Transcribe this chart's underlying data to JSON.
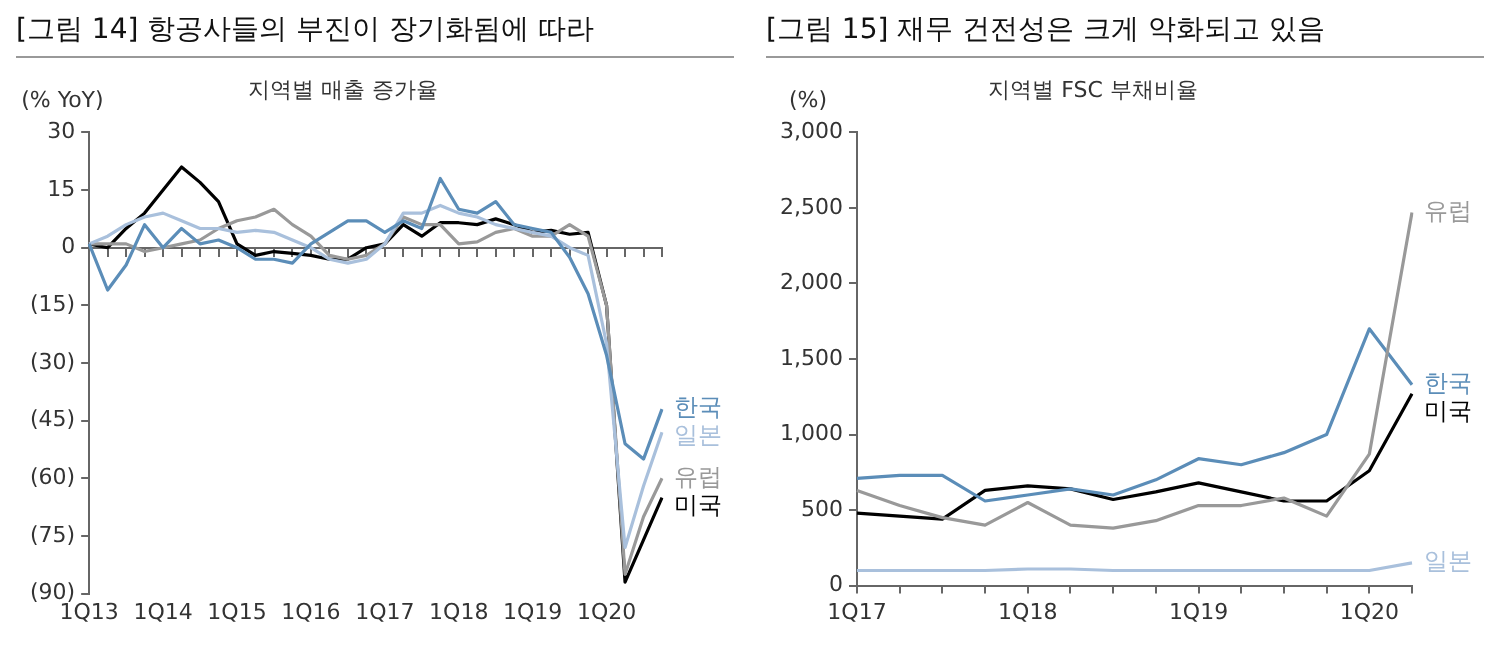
{
  "chart_data": [
    {
      "type": "line",
      "title": "[그림 14] 항공사들의 부진이 장기화됨에 따라",
      "subtitle": "지역별 매출 증가율",
      "ylabel": "(% YoY)",
      "categories": [
        "1Q13",
        null,
        null,
        null,
        "1Q14",
        null,
        null,
        null,
        "1Q15",
        null,
        null,
        null,
        "1Q16",
        null,
        null,
        null,
        "1Q17",
        null,
        null,
        null,
        "1Q18",
        null,
        null,
        null,
        "1Q19",
        null,
        null,
        null,
        "1Q20",
        null,
        null,
        null
      ],
      "series": [
        {
          "name": "한국",
          "color": "#5b8db8",
          "values": [
            1,
            -11,
            -4.5,
            6,
            0,
            5,
            1,
            2,
            0,
            -3,
            -3,
            -4,
            1,
            4,
            7,
            7,
            4,
            7,
            5,
            18,
            10,
            9,
            12,
            6,
            5,
            4,
            -2.5,
            -12,
            -28,
            -51,
            -55,
            -42
          ]
        },
        {
          "name": "일본",
          "color": "#a9c0dc",
          "values": [
            1,
            3,
            6,
            8,
            9,
            7,
            5,
            5,
            4,
            4.5,
            4,
            2,
            0,
            -3,
            -4,
            -3,
            1,
            9,
            9,
            11,
            9,
            8,
            6,
            5,
            4,
            3,
            0,
            -2,
            -25,
            -78,
            -62,
            -48
          ]
        },
        {
          "name": "유럽",
          "color": "#999999",
          "values": [
            1,
            1,
            1,
            -1,
            0,
            1,
            2,
            5,
            7,
            8,
            10,
            6,
            3,
            -2,
            -3,
            -2,
            1,
            8,
            6,
            6,
            1,
            1.5,
            4,
            5,
            3,
            3,
            6,
            3,
            -15,
            -85,
            -70,
            -60
          ]
        },
        {
          "name": "미국",
          "color": "#000000",
          "values": [
            1,
            0,
            5,
            9,
            15,
            21,
            17,
            12,
            1,
            -2,
            -1,
            -1.5,
            -2,
            -3,
            -3,
            0,
            1,
            6,
            3,
            6.5,
            6.5,
            6,
            7.5,
            6,
            4,
            4.5,
            3.5,
            4,
            -15,
            -87,
            -76,
            -65
          ]
        }
      ],
      "ylim": [
        -90,
        30
      ],
      "yticks": [
        {
          "value": -90,
          "label": "(90)"
        },
        {
          "value": -75,
          "label": "(75)"
        },
        {
          "value": -60,
          "label": "(60)"
        },
        {
          "value": -45,
          "label": "(45)"
        },
        {
          "value": -30,
          "label": "(30)"
        },
        {
          "value": -15,
          "label": "(15)"
        },
        0,
        15,
        30
      ],
      "marker": "none",
      "line_style": "solid"
    },
    {
      "type": "line",
      "title": "[그림 15] 재무 건전성은 크게 악화되고 있음",
      "subtitle": "지역별 FSC 부채비율",
      "ylabel": "(%)",
      "categories": [
        "1Q17",
        null,
        null,
        null,
        "1Q18",
        null,
        null,
        null,
        "1Q19",
        null,
        null,
        null,
        "1Q20",
        null
      ],
      "series": [
        {
          "name": "유럽",
          "color": "#999999",
          "values": [
            630,
            530,
            450,
            400,
            550,
            400,
            380,
            430,
            530,
            530,
            580,
            460,
            870,
            2470
          ]
        },
        {
          "name": "한국",
          "color": "#5b8db8",
          "values": [
            710,
            730,
            730,
            560,
            600,
            640,
            600,
            700,
            840,
            800,
            880,
            1000,
            1700,
            1330
          ]
        },
        {
          "name": "미국",
          "color": "#000000",
          "values": [
            480,
            460,
            440,
            630,
            660,
            640,
            570,
            620,
            680,
            620,
            560,
            560,
            760,
            1270
          ]
        },
        {
          "name": "일본",
          "color": "#a9c0dc",
          "values": [
            100,
            100,
            100,
            100,
            110,
            110,
            100,
            100,
            100,
            100,
            100,
            100,
            100,
            150
          ]
        }
      ],
      "ylim": [
        0,
        3000
      ],
      "yticks": [
        0,
        500,
        {
          "value": 1000,
          "label": "1,000"
        },
        {
          "value": 1500,
          "label": "1,500"
        },
        {
          "value": 2000,
          "label": "2,000"
        },
        {
          "value": 2500,
          "label": "2,500"
        },
        {
          "value": 3000,
          "label": "3,000"
        }
      ],
      "marker": "none",
      "line_style": "solid"
    }
  ]
}
